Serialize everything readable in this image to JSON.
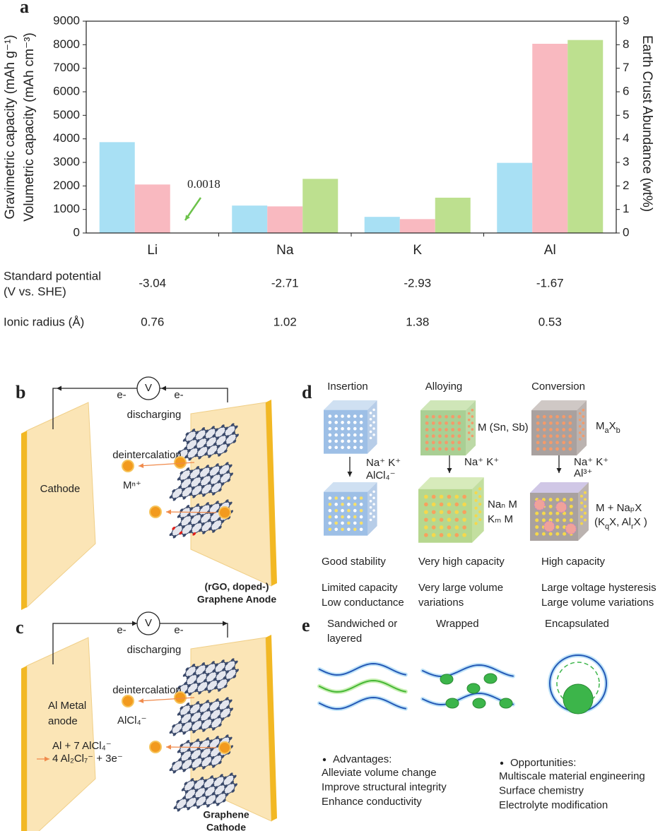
{
  "chart_data": {
    "type": "bar",
    "panel_label": "a",
    "categories": [
      "Li",
      "Na",
      "K",
      "Al"
    ],
    "series": [
      {
        "name": "Gravimetric capacity (mAh g⁻¹)",
        "color": "#a8e0f4",
        "label_color": "#52c4ea",
        "values": [
          3860,
          1165,
          685,
          2980
        ]
      },
      {
        "name": "Volumetric capacity (mAh cm⁻³)",
        "color": "#f9b9c0",
        "label_color": "#f39aa6",
        "values": [
          2060,
          1130,
          590,
          8040
        ]
      },
      {
        "name": "Earth Crust Abundance (wt%)",
        "color": "#bde08f",
        "label_color": "#3dbd50",
        "axis": "y2",
        "values": [
          0.0018,
          2.3,
          1.5,
          8.2
        ]
      }
    ],
    "ylim": [
      0,
      9000
    ],
    "yticks": [
      0,
      1000,
      2000,
      3000,
      4000,
      5000,
      6000,
      7000,
      8000,
      9000
    ],
    "y2lim": [
      0,
      9
    ],
    "y2ticks": [
      0,
      1,
      2,
      3,
      4,
      5,
      6,
      7,
      8,
      9
    ],
    "annotations": [
      {
        "text": "0.0018",
        "color": "#6cc24a"
      }
    ]
  },
  "properties": {
    "rows": [
      {
        "label": [
          "Standard potential",
          "(V vs. SHE)"
        ],
        "values": [
          -3.04,
          -2.71,
          -2.93,
          -1.67
        ]
      },
      {
        "label": [
          "Ionic radius (Å)"
        ],
        "values": [
          0.76,
          1.02,
          1.38,
          0.53
        ]
      }
    ]
  },
  "panel_b": {
    "label": "b",
    "meter": "V",
    "electron": [
      "e-",
      "e-"
    ],
    "process": "discharging",
    "ion_label": "deintercalation",
    "ion": "Mⁿ⁺",
    "cathode": [
      "Cathode"
    ],
    "anode": [
      "(rGO, doped-)",
      "Graphene Anode"
    ]
  },
  "panel_c": {
    "label": "c",
    "meter": "V",
    "electron": [
      "e-",
      "e-"
    ],
    "process": "discharging",
    "ion_label": "deintercalation",
    "ion": "AlCl₄⁻",
    "anode": [
      "Al Metal",
      "anode"
    ],
    "reaction": [
      "Al + 7 AlCl₄⁻",
      "4 Al₂Cl₇⁻ + 3e⁻"
    ],
    "cathode": [
      "Graphene",
      "Cathode"
    ]
  },
  "panel_d": {
    "label": "d",
    "columns": [
      {
        "title": "Insertion",
        "ions": [
          "Na⁺  K⁺",
          "AlCl₄⁻"
        ],
        "merits": [
          "Good stability"
        ],
        "drawbacks": [
          "Limited capacity",
          "Low conductance"
        ]
      },
      {
        "title": "Alloying",
        "host": [
          "M (Sn, Sb)"
        ],
        "ions": [
          "Na⁺  K⁺"
        ],
        "product": [
          "Naₙ M",
          "Kₘ M"
        ],
        "merits": [
          "Very high capacity"
        ],
        "drawbacks": [
          "Very large volume",
          "variations"
        ]
      },
      {
        "title": "Conversion",
        "host": [
          "M",
          "a",
          "X",
          "b"
        ],
        "ions": [
          "Na⁺  K⁺",
          "Al³⁺"
        ],
        "product": [
          "M + NaₚX"
        ],
        "product2": [
          "(K",
          "q",
          "X, Al",
          "r",
          "X )"
        ],
        "merits": [
          "High capacity"
        ],
        "drawbacks": [
          "Large voltage hysteresis",
          "Large volume variations"
        ]
      }
    ]
  },
  "panel_e": {
    "label": "e",
    "structures": [
      [
        "Sandwiched or",
        "layered"
      ],
      [
        "Wrapped"
      ],
      [
        "Encapsulated"
      ]
    ],
    "advantages": {
      "title": "Advantages:",
      "items": [
        "Alleviate volume change",
        "Improve structural integrity",
        "Enhance conductivity"
      ]
    },
    "opportunities": {
      "title": "Opportunities:",
      "items": [
        "Multiscale material engineering",
        "Surface chemistry",
        "Electrolyte modification"
      ]
    }
  }
}
